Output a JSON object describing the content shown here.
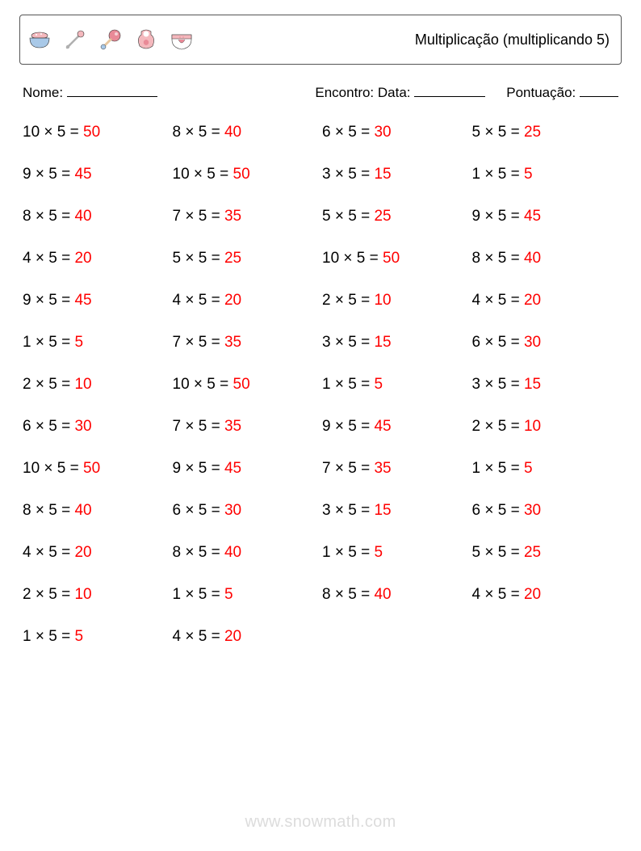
{
  "header": {
    "title": "Multiplicação (multiplicando 5)",
    "icons": [
      "bowl-icon",
      "safety-pin-icon",
      "rattle-icon",
      "bib-icon",
      "diaper-icon"
    ]
  },
  "meta": {
    "name_label": "Nome:",
    "date_label": "Encontro: Data:",
    "score_label": "Pontuação:",
    "name_blank_width": 112,
    "date_blank_width": 88,
    "score_blank_width": 48
  },
  "style": {
    "text_color": "#000000",
    "answer_color": "#ff0000",
    "border_color": "#555555",
    "background_color": "#ffffff",
    "watermark_color": "#dcdcdc",
    "icon_pink": "#f4b8bd",
    "icon_pink_dark": "#e98a97",
    "icon_tan": "#e8c79e",
    "icon_blue": "#a9c9e8",
    "problem_fontsize": 19,
    "title_fontsize": 18,
    "meta_fontsize": 17,
    "row_gap": 30,
    "times_symbol": "×",
    "equals_symbol": "="
  },
  "columns": [
    [
      {
        "a": 10,
        "b": 5,
        "ans": 50
      },
      {
        "a": 9,
        "b": 5,
        "ans": 45
      },
      {
        "a": 8,
        "b": 5,
        "ans": 40
      },
      {
        "a": 4,
        "b": 5,
        "ans": 20
      },
      {
        "a": 9,
        "b": 5,
        "ans": 45
      },
      {
        "a": 1,
        "b": 5,
        "ans": 5
      },
      {
        "a": 2,
        "b": 5,
        "ans": 10
      },
      {
        "a": 6,
        "b": 5,
        "ans": 30
      },
      {
        "a": 10,
        "b": 5,
        "ans": 50
      },
      {
        "a": 8,
        "b": 5,
        "ans": 40
      },
      {
        "a": 4,
        "b": 5,
        "ans": 20
      },
      {
        "a": 2,
        "b": 5,
        "ans": 10
      },
      {
        "a": 1,
        "b": 5,
        "ans": 5
      }
    ],
    [
      {
        "a": 8,
        "b": 5,
        "ans": 40
      },
      {
        "a": 10,
        "b": 5,
        "ans": 50
      },
      {
        "a": 7,
        "b": 5,
        "ans": 35
      },
      {
        "a": 5,
        "b": 5,
        "ans": 25
      },
      {
        "a": 4,
        "b": 5,
        "ans": 20
      },
      {
        "a": 7,
        "b": 5,
        "ans": 35
      },
      {
        "a": 10,
        "b": 5,
        "ans": 50
      },
      {
        "a": 7,
        "b": 5,
        "ans": 35
      },
      {
        "a": 9,
        "b": 5,
        "ans": 45
      },
      {
        "a": 6,
        "b": 5,
        "ans": 30
      },
      {
        "a": 8,
        "b": 5,
        "ans": 40
      },
      {
        "a": 1,
        "b": 5,
        "ans": 5
      },
      {
        "a": 4,
        "b": 5,
        "ans": 20
      }
    ],
    [
      {
        "a": 6,
        "b": 5,
        "ans": 30
      },
      {
        "a": 3,
        "b": 5,
        "ans": 15
      },
      {
        "a": 5,
        "b": 5,
        "ans": 25
      },
      {
        "a": 10,
        "b": 5,
        "ans": 50
      },
      {
        "a": 2,
        "b": 5,
        "ans": 10
      },
      {
        "a": 3,
        "b": 5,
        "ans": 15
      },
      {
        "a": 1,
        "b": 5,
        "ans": 5
      },
      {
        "a": 9,
        "b": 5,
        "ans": 45
      },
      {
        "a": 7,
        "b": 5,
        "ans": 35
      },
      {
        "a": 3,
        "b": 5,
        "ans": 15
      },
      {
        "a": 1,
        "b": 5,
        "ans": 5
      },
      {
        "a": 8,
        "b": 5,
        "ans": 40
      }
    ],
    [
      {
        "a": 5,
        "b": 5,
        "ans": 25
      },
      {
        "a": 1,
        "b": 5,
        "ans": 5
      },
      {
        "a": 9,
        "b": 5,
        "ans": 45
      },
      {
        "a": 8,
        "b": 5,
        "ans": 40
      },
      {
        "a": 4,
        "b": 5,
        "ans": 20
      },
      {
        "a": 6,
        "b": 5,
        "ans": 30
      },
      {
        "a": 3,
        "b": 5,
        "ans": 15
      },
      {
        "a": 2,
        "b": 5,
        "ans": 10
      },
      {
        "a": 1,
        "b": 5,
        "ans": 5
      },
      {
        "a": 6,
        "b": 5,
        "ans": 30
      },
      {
        "a": 5,
        "b": 5,
        "ans": 25
      },
      {
        "a": 4,
        "b": 5,
        "ans": 20
      }
    ]
  ],
  "watermark": "www.snowmath.com"
}
